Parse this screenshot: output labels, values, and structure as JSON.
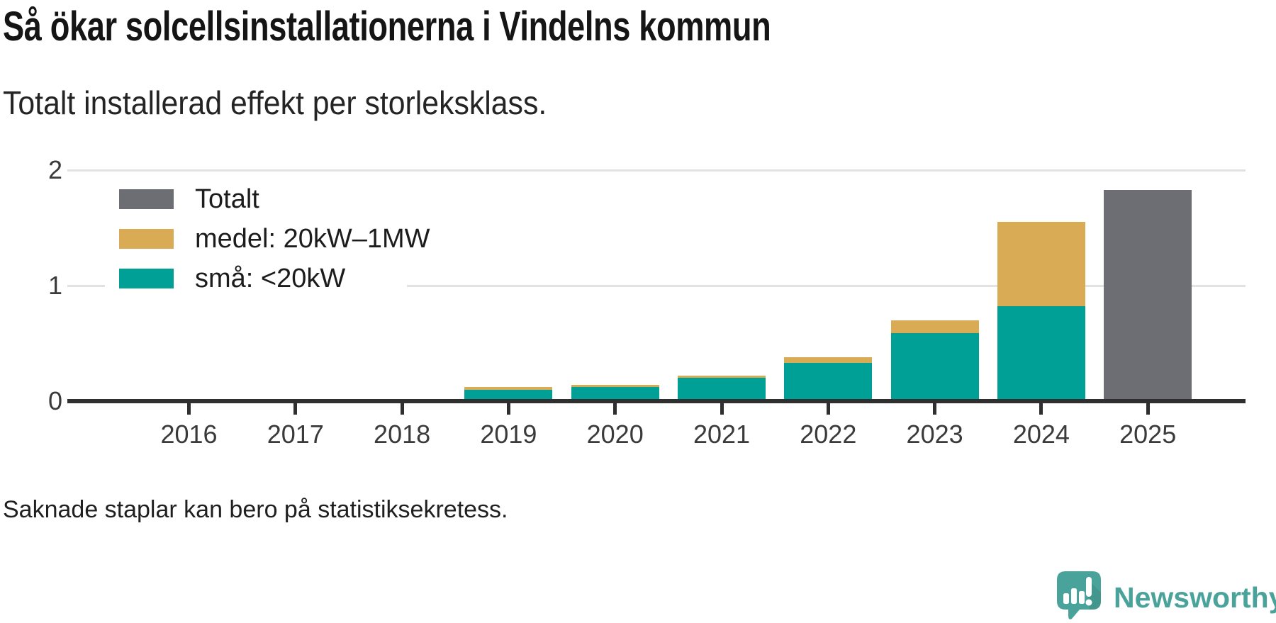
{
  "header": {
    "title": "Så ökar solcellsinstallationerna i Vindelns kommun",
    "subtitle": "Totalt installerad effekt per storleksklass."
  },
  "footer": {
    "note": "Saknade staplar kan bero på statistiksekretess.",
    "brand_name": "Newsworthy"
  },
  "colors": {
    "total": "#6d6d74",
    "medium": "#d9ab55",
    "small": "#00a096",
    "gridline": "#e2e2e2",
    "axis": "#2f2f2f",
    "brand_teal": "#4aa39a"
  },
  "chart_data": {
    "type": "bar",
    "stacked": true,
    "title": "Så ökar solcellsinstallationerna i Vindelns kommun",
    "subtitle": "Totalt installerad effekt per storleksklass.",
    "xlabel": "",
    "ylabel": "",
    "ylim": [
      0,
      2
    ],
    "yticks": [
      0,
      1,
      2
    ],
    "grid": true,
    "legend_position": "top-left",
    "categories": [
      "2016",
      "2017",
      "2018",
      "2019",
      "2020",
      "2021",
      "2022",
      "2023",
      "2024",
      "2025"
    ],
    "series": [
      {
        "name": "Totalt",
        "color": "#6d6d74",
        "values": [
          null,
          null,
          null,
          null,
          null,
          null,
          null,
          null,
          null,
          1.83
        ]
      },
      {
        "name": "medel: 20kW–1MW",
        "color": "#d9ab55",
        "values": [
          null,
          null,
          null,
          0.02,
          0.02,
          0.02,
          0.05,
          0.11,
          0.73,
          null
        ]
      },
      {
        "name": "små: <20kW",
        "color": "#00a096",
        "values": [
          null,
          null,
          null,
          0.1,
          0.12,
          0.2,
          0.33,
          0.59,
          0.82,
          null
        ]
      }
    ]
  }
}
